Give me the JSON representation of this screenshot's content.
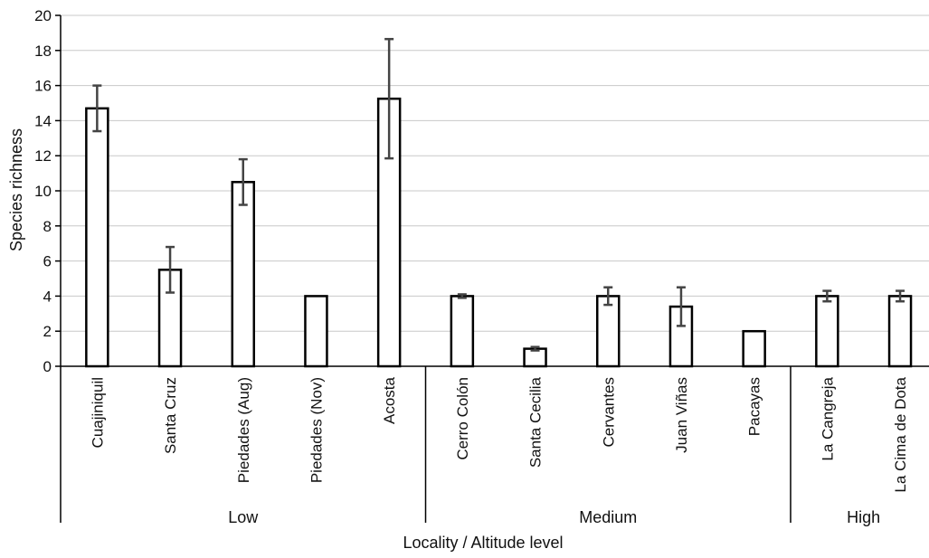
{
  "chart_data": {
    "type": "bar",
    "title": "",
    "xlabel": "Locality / Altitude level",
    "ylabel": "Species richness",
    "ylim": [
      0,
      20
    ],
    "yticks": [
      0,
      2,
      4,
      6,
      8,
      10,
      12,
      14,
      16,
      18,
      20
    ],
    "grid": true,
    "categories": [
      "Cuajiniquil",
      "Santa Cruz",
      "Piedades (Aug)",
      "Piedades (Nov)",
      "Acosta",
      "Cerro Colón",
      "Santa Cecilia",
      "Cervantes",
      "Juan Viñas",
      "Pacayas",
      "La Cangreja",
      "La Cima de Dota"
    ],
    "values": [
      14.7,
      5.5,
      10.5,
      4.0,
      15.25,
      4.0,
      1.0,
      4.0,
      3.4,
      2.0,
      4.0,
      4.0
    ],
    "error": [
      1.3,
      1.3,
      1.3,
      0.0,
      3.4,
      0.1,
      0.1,
      0.5,
      1.1,
      0.0,
      0.3,
      0.3
    ],
    "groups": [
      {
        "label": "Low",
        "start": 0,
        "end": 4
      },
      {
        "label": "Medium",
        "start": 5,
        "end": 9
      },
      {
        "label": "High",
        "start": 10,
        "end": 11
      }
    ],
    "colors": {
      "bar_fill": "#ffffff",
      "bar_stroke": "#000000",
      "error_bar": "#444444",
      "grid": "#c8c8c8"
    }
  }
}
